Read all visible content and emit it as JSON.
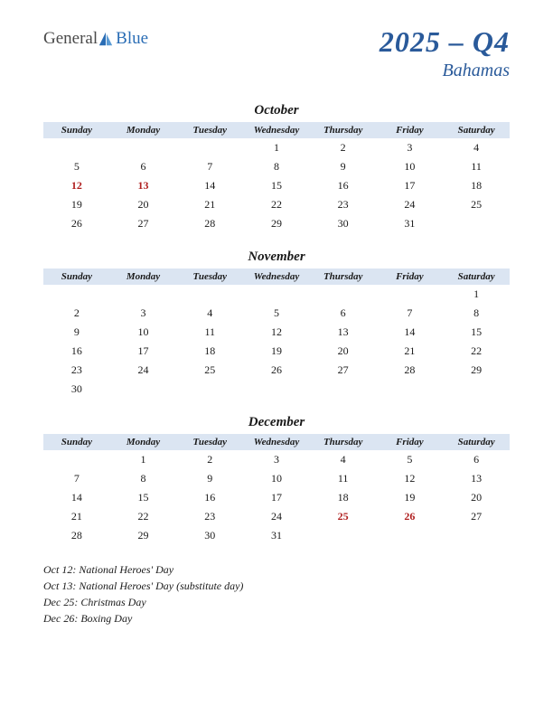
{
  "logo": {
    "word1": "General",
    "word2": "Blue"
  },
  "title": {
    "main": "2025 – Q4",
    "sub": "Bahamas"
  },
  "day_headers": [
    "Sunday",
    "Monday",
    "Tuesday",
    "Wednesday",
    "Thursday",
    "Friday",
    "Saturday"
  ],
  "colors": {
    "header_bg": "#dbe5f2",
    "title_color": "#2a5a9a",
    "holiday_color": "#b02020",
    "text_color": "#1a1a1a"
  },
  "months": [
    {
      "name": "October",
      "weeks": [
        [
          "",
          "",
          "",
          1,
          2,
          3,
          4
        ],
        [
          5,
          6,
          7,
          8,
          9,
          10,
          11
        ],
        [
          12,
          13,
          14,
          15,
          16,
          17,
          18
        ],
        [
          19,
          20,
          21,
          22,
          23,
          24,
          25
        ],
        [
          26,
          27,
          28,
          29,
          30,
          31,
          ""
        ]
      ],
      "holidays": [
        12,
        13
      ]
    },
    {
      "name": "November",
      "weeks": [
        [
          "",
          "",
          "",
          "",
          "",
          "",
          1
        ],
        [
          2,
          3,
          4,
          5,
          6,
          7,
          8
        ],
        [
          9,
          10,
          11,
          12,
          13,
          14,
          15
        ],
        [
          16,
          17,
          18,
          19,
          20,
          21,
          22
        ],
        [
          23,
          24,
          25,
          26,
          27,
          28,
          29
        ],
        [
          30,
          "",
          "",
          "",
          "",
          "",
          ""
        ]
      ],
      "holidays": []
    },
    {
      "name": "December",
      "weeks": [
        [
          "",
          1,
          2,
          3,
          4,
          5,
          6
        ],
        [
          7,
          8,
          9,
          10,
          11,
          12,
          13
        ],
        [
          14,
          15,
          16,
          17,
          18,
          19,
          20
        ],
        [
          21,
          22,
          23,
          24,
          25,
          26,
          27
        ],
        [
          28,
          29,
          30,
          31,
          "",
          "",
          ""
        ]
      ],
      "holidays": [
        25,
        26
      ]
    }
  ],
  "holiday_notes": [
    "Oct 12: National Heroes' Day",
    "Oct 13: National Heroes' Day (substitute day)",
    "Dec 25: Christmas Day",
    "Dec 26: Boxing Day"
  ]
}
